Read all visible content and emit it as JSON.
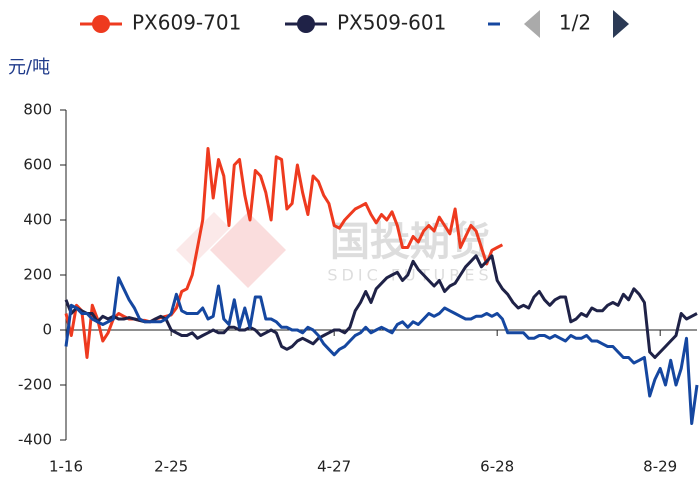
{
  "chart_data": {
    "type": "line",
    "y_axis_label": "元/吨",
    "legend_page": "1/2",
    "watermark": {
      "text": "国投期货",
      "subtext": "SDIC FUTURES"
    },
    "ylim": [
      -400,
      800
    ],
    "yticks": [
      -400,
      -200,
      0,
      200,
      400,
      600,
      800
    ],
    "grid": false,
    "categories": [
      "1-16",
      null,
      null,
      null,
      null,
      null,
      null,
      null,
      null,
      null,
      null,
      null,
      null,
      null,
      null,
      null,
      null,
      null,
      null,
      null,
      "2-25",
      null,
      null,
      null,
      null,
      null,
      null,
      null,
      null,
      null,
      null,
      null,
      null,
      null,
      null,
      null,
      null,
      null,
      null,
      null,
      null,
      null,
      null,
      null,
      null,
      null,
      null,
      null,
      null,
      null,
      null,
      "4-27",
      null,
      null,
      null,
      null,
      null,
      null,
      null,
      null,
      null,
      null,
      null,
      null,
      null,
      null,
      null,
      null,
      null,
      null,
      null,
      null,
      null,
      null,
      null,
      null,
      null,
      null,
      null,
      null,
      null,
      null,
      "6-28",
      null,
      null,
      null,
      null,
      null,
      null,
      null,
      null,
      null,
      null,
      null,
      null,
      null,
      null,
      null,
      null,
      null,
      null,
      null,
      null,
      null,
      null,
      null,
      null,
      null,
      null,
      null,
      null,
      null,
      null,
      "8-29",
      null,
      null,
      null,
      null,
      null,
      null,
      null
    ],
    "series": [
      {
        "name": "PX609-701",
        "color": "#ee3a1f",
        "values": [
          60,
          -20,
          90,
          70,
          -100,
          90,
          40,
          -40,
          -10,
          40,
          60,
          50,
          40,
          40,
          35,
          35,
          30,
          40,
          45,
          50,
          55,
          80,
          140,
          150,
          200,
          300,
          400,
          660,
          480,
          620,
          560,
          380,
          600,
          620,
          490,
          400,
          580,
          560,
          500,
          400,
          630,
          620,
          440,
          460,
          600,
          500,
          420,
          560,
          540,
          490,
          460,
          380,
          370,
          400,
          420,
          440,
          450,
          460,
          420,
          390,
          420,
          400,
          430,
          380,
          300,
          300,
          340,
          320,
          360,
          380,
          360,
          410,
          380,
          350,
          440,
          300,
          340,
          380,
          360,
          300,
          240,
          290,
          300,
          310,
          null,
          null,
          null,
          null,
          null,
          null,
          null,
          null,
          null,
          null,
          null,
          null,
          null,
          null,
          null,
          null,
          null,
          null,
          null,
          null,
          null,
          null,
          null,
          null,
          null,
          null,
          null,
          null,
          null,
          null,
          null,
          null,
          null,
          null,
          null,
          null,
          null
        ]
      },
      {
        "name": "PX509-601",
        "color": "#1f2247",
        "values": [
          110,
          60,
          80,
          70,
          60,
          60,
          30,
          50,
          40,
          50,
          40,
          40,
          45,
          40,
          35,
          30,
          30,
          40,
          50,
          40,
          0,
          -10,
          -20,
          -20,
          -10,
          -30,
          -20,
          -10,
          0,
          -10,
          -10,
          10,
          10,
          0,
          0,
          10,
          0,
          -20,
          -10,
          0,
          -10,
          -60,
          -70,
          -60,
          -40,
          -30,
          -40,
          -50,
          -30,
          -20,
          -10,
          0,
          0,
          -10,
          10,
          70,
          100,
          140,
          100,
          150,
          170,
          190,
          200,
          210,
          180,
          200,
          250,
          220,
          200,
          180,
          160,
          180,
          140,
          160,
          170,
          200,
          230,
          250,
          270,
          230,
          250,
          270,
          180,
          150,
          130,
          100,
          80,
          90,
          80,
          120,
          140,
          110,
          90,
          110,
          120,
          120,
          30,
          40,
          60,
          50,
          80,
          70,
          70,
          90,
          100,
          90,
          130,
          110,
          150,
          130,
          100,
          -80,
          -100,
          -80,
          -60,
          -40,
          -20,
          60,
          40,
          50,
          60
        ]
      },
      {
        "color": "#1547a0",
        "values": [
          -60,
          90,
          80,
          60,
          60,
          40,
          30,
          20,
          30,
          40,
          190,
          150,
          110,
          80,
          40,
          30,
          30,
          30,
          30,
          40,
          60,
          130,
          70,
          60,
          60,
          60,
          80,
          40,
          50,
          160,
          40,
          20,
          110,
          10,
          80,
          10,
          120,
          120,
          40,
          40,
          30,
          10,
          10,
          0,
          0,
          -10,
          10,
          0,
          -20,
          -50,
          -70,
          -90,
          -70,
          -60,
          -40,
          -20,
          -10,
          10,
          -10,
          0,
          10,
          0,
          -10,
          20,
          30,
          10,
          30,
          20,
          40,
          60,
          50,
          60,
          80,
          70,
          60,
          50,
          40,
          40,
          50,
          50,
          60,
          50,
          60,
          40,
          -10,
          -10,
          -10,
          -10,
          -30,
          -30,
          -20,
          -20,
          -30,
          -20,
          -30,
          -40,
          -20,
          -30,
          -30,
          -20,
          -40,
          -40,
          -50,
          -60,
          -60,
          -80,
          -100,
          -100,
          -120,
          -110,
          -100,
          -240,
          -180,
          -140,
          -200,
          -110,
          -200,
          -140,
          -30,
          -340,
          -200
        ]
      }
    ]
  }
}
